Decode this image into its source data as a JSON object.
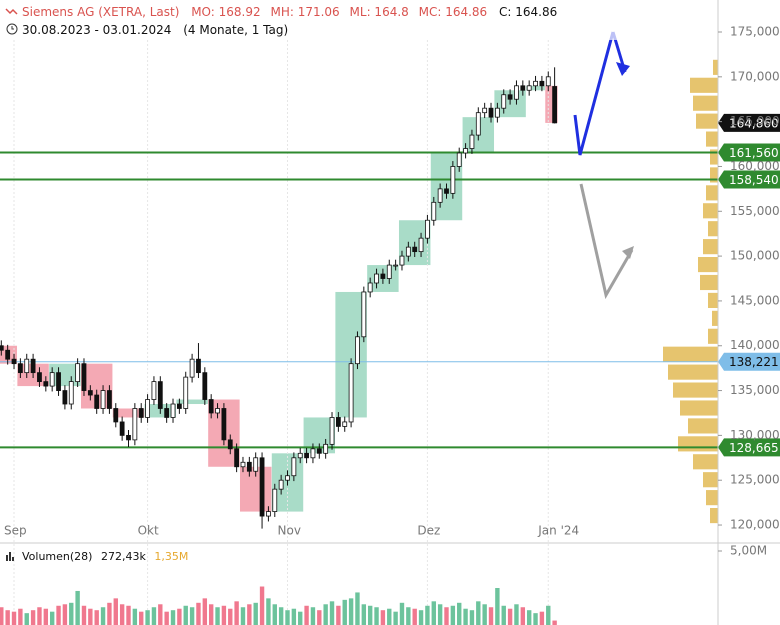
{
  "chart_data": {
    "type": "candlestick",
    "title": "Siemens AG (XETRA, Last)",
    "header_stats": [
      "MO: 168.92",
      "MH: 171.06",
      "ML: 164.8",
      "MC: 164.86"
    ],
    "close_stat": "C: 164.86",
    "date_range": "30.08.2023 - 03.01.2024",
    "period": "(4 Monate, 1 Tag)",
    "categories": [
      null,
      null,
      "Sep",
      null,
      null,
      null,
      null,
      null,
      null,
      null,
      null,
      null,
      null,
      null,
      null,
      null,
      null,
      null,
      null,
      null,
      null,
      null,
      null,
      "Okt",
      null,
      null,
      null,
      null,
      null,
      null,
      null,
      null,
      null,
      null,
      null,
      null,
      null,
      null,
      null,
      null,
      null,
      null,
      null,
      null,
      null,
      "Nov",
      null,
      null,
      null,
      null,
      null,
      null,
      null,
      null,
      null,
      null,
      null,
      null,
      null,
      null,
      null,
      null,
      null,
      null,
      null,
      null,
      null,
      "Dez",
      null,
      null,
      null,
      null,
      null,
      null,
      null,
      null,
      null,
      null,
      null,
      null,
      null,
      null,
      null,
      null,
      null,
      null,
      "Jan '24",
      null
    ],
    "open": [
      140,
      139.5,
      138.5,
      138,
      137,
      138.5,
      137,
      136,
      135.5,
      137,
      135,
      133.5,
      136,
      138,
      135,
      134.5,
      133,
      135,
      133,
      131.5,
      130,
      129.5,
      133,
      132,
      134,
      136,
      133,
      132,
      133.5,
      133,
      136.5,
      138.5,
      137,
      134,
      132.5,
      133,
      129.5,
      128.5,
      126.5,
      127,
      126,
      127.5,
      121,
      121.5,
      124,
      125,
      125.5,
      127.5,
      128,
      127.5,
      128.5,
      128,
      129,
      132,
      131,
      131.5,
      138,
      141,
      146,
      147,
      148,
      147.5,
      149,
      149,
      150,
      151,
      150.5,
      152,
      154,
      156,
      157.5,
      157,
      160,
      161.5,
      162,
      163.5,
      166,
      166.5,
      165.5,
      166.5,
      168,
      167.5,
      169,
      168.5,
      169,
      169.5,
      169,
      168.92
    ],
    "high": [
      140.6,
      140.1,
      139.1,
      138.6,
      139.1,
      139.1,
      137.6,
      136.6,
      137.6,
      137.6,
      135.6,
      136.6,
      138.6,
      138.6,
      135.6,
      135.1,
      135.6,
      135.6,
      133.6,
      132.1,
      130.6,
      133.6,
      133.6,
      134.6,
      136.6,
      136.6,
      133.6,
      134.1,
      134.1,
      137.1,
      139.1,
      140.3,
      137.6,
      134.6,
      133.6,
      133.6,
      130.1,
      129.1,
      127.6,
      127.6,
      128.1,
      128.1,
      122.1,
      124.6,
      125.6,
      126.1,
      128.1,
      128.6,
      128.6,
      129.1,
      129.1,
      129.6,
      132.6,
      132.6,
      132.1,
      138.6,
      141.6,
      146.6,
      147.6,
      148.6,
      148.6,
      149.6,
      149.6,
      150.6,
      151.6,
      151.6,
      152.6,
      154.6,
      156.6,
      158.1,
      158.1,
      160.6,
      162.1,
      162.6,
      164.1,
      166.6,
      167.1,
      167.1,
      167.1,
      168.6,
      168.6,
      169.6,
      169.6,
      169.6,
      170.1,
      170.1,
      170.6,
      171.06
    ],
    "low": [
      138.9,
      137.9,
      137.4,
      136.4,
      136.4,
      136.4,
      135.4,
      134.9,
      134.9,
      134.4,
      132.9,
      132.9,
      135.4,
      134.4,
      133.9,
      132.4,
      132.4,
      132.4,
      130.9,
      129.4,
      128.7,
      128.9,
      131.4,
      131.4,
      133.4,
      132.4,
      131.4,
      131.4,
      132.4,
      132.4,
      135.9,
      136.4,
      133.4,
      131.9,
      131.9,
      128.9,
      127.9,
      125.9,
      125.9,
      125.4,
      125.4,
      119.6,
      120.4,
      120.9,
      123.4,
      124.4,
      124.9,
      126.9,
      126.9,
      126.9,
      127.4,
      127.4,
      128.4,
      130.4,
      130.4,
      130.9,
      137.4,
      140.4,
      145.4,
      146.4,
      146.9,
      146.9,
      148.4,
      148.4,
      149.4,
      149.9,
      149.9,
      151.4,
      153.4,
      155.4,
      156.4,
      156.4,
      159.4,
      160.9,
      161.4,
      162.9,
      165.4,
      164.9,
      164.9,
      165.9,
      166.9,
      166.9,
      167.9,
      167.9,
      168.4,
      168.4,
      168.4,
      164.8
    ],
    "close": [
      139.5,
      138.5,
      138,
      137,
      138.5,
      137,
      136,
      135.5,
      137,
      135,
      133.5,
      136,
      138,
      135,
      134.5,
      133,
      135,
      133,
      131.5,
      130,
      129.5,
      133,
      132,
      134,
      136,
      133,
      132,
      133.5,
      133,
      136.5,
      138.5,
      137,
      134,
      132.5,
      133,
      129.5,
      128.5,
      126.5,
      127,
      126,
      127.5,
      121,
      121.5,
      124,
      125,
      125.5,
      127.5,
      128,
      127.5,
      128.5,
      128,
      129,
      132,
      131,
      131.5,
      138,
      141,
      146,
      147,
      148,
      147.5,
      149,
      149,
      150,
      151,
      150.5,
      152,
      154,
      156,
      157.5,
      157,
      160,
      161.5,
      162,
      163.5,
      166,
      166.5,
      165.5,
      166.5,
      168,
      167.5,
      169,
      168.5,
      169,
      169.5,
      169,
      170,
      164.86
    ],
    "up_color": "#ffffff",
    "down_color": "#111111",
    "week_up_color": "#a9dcc8",
    "week_down_color": "#f4a9b4",
    "ylim": [
      118.33,
      178.57
    ],
    "yticks": [
      {
        "value": 120,
        "label": "120,000"
      },
      {
        "value": 125,
        "label": "125,000"
      },
      {
        "value": 130,
        "label": "130,000"
      },
      {
        "value": 135,
        "label": "135,000"
      },
      {
        "value": 140,
        "label": "140,000"
      },
      {
        "value": 145,
        "label": "145,000"
      },
      {
        "value": 150,
        "label": "150,000"
      },
      {
        "value": 155,
        "label": "155,000"
      },
      {
        "value": 160,
        "label": "160,000"
      },
      {
        "value": 165,
        "label": "165,000"
      },
      {
        "value": 170,
        "label": "170,000"
      },
      {
        "value": 175,
        "label": "175,000"
      }
    ],
    "levels": [
      {
        "value": 164.86,
        "label": "164,860",
        "color": "#111111",
        "text_color": "#ffffff",
        "line": false
      },
      {
        "value": 161.56,
        "label": "161,560",
        "color": "#2f8a2f",
        "text_color": "#ffffff",
        "line": true
      },
      {
        "value": 158.54,
        "label": "158,540",
        "color": "#2f8a2f",
        "text_color": "#ffffff",
        "line": true
      },
      {
        "value": 138.221,
        "label": "138,221",
        "color": "#7fbde8",
        "text_color": "#111111",
        "line": true
      },
      {
        "value": 128.665,
        "label": "128,665",
        "color": "#2f8a2f",
        "text_color": "#ffffff",
        "line": true
      }
    ],
    "volume_profile": {
      "color": "#e6c46e",
      "prices": [
        121,
        123,
        125,
        127,
        129,
        131,
        133,
        135,
        137,
        139,
        141,
        143,
        145,
        147,
        149,
        151,
        153,
        155,
        157,
        159,
        161,
        163,
        165,
        167,
        169,
        171
      ],
      "values": [
        8,
        12,
        15,
        25,
        40,
        30,
        38,
        45,
        50,
        55,
        10,
        6,
        10,
        18,
        20,
        15,
        10,
        15,
        12,
        8,
        8,
        12,
        22,
        25,
        28,
        5
      ]
    },
    "volume": {
      "title": "Volumen(28)",
      "avg_label": "272,43k",
      "max_label": "1,35M",
      "up_color": "#6cc39c",
      "down_color": "#f0788e",
      "values": [
        1.2,
        1.0,
        0.9,
        1.1,
        0.8,
        1.0,
        1.2,
        1.1,
        0.9,
        1.3,
        1.4,
        1.5,
        2.3,
        1.3,
        1.1,
        1.0,
        1.2,
        1.5,
        1.8,
        1.4,
        1.3,
        1.1,
        0.9,
        1.0,
        1.2,
        1.4,
        0.9,
        1.0,
        1.1,
        1.3,
        1.2,
        1.5,
        1.8,
        1.4,
        1.2,
        1.3,
        1.1,
        1.6,
        1.2,
        1.4,
        1.5,
        2.6,
        1.8,
        1.4,
        1.2,
        1.0,
        1.1,
        0.9,
        1.3,
        1.2,
        1.0,
        1.4,
        1.6,
        1.3,
        1.7,
        1.8,
        2.2,
        1.4,
        1.3,
        1.2,
        1.0,
        1.1,
        0.9,
        1.5,
        1.2,
        1.1,
        1.0,
        1.3,
        1.6,
        1.4,
        1.2,
        1.3,
        1.5,
        1.1,
        1.0,
        1.6,
        1.4,
        1.2,
        2.5,
        1.3,
        1.1,
        1.4,
        1.2,
        1.0,
        0.8,
        0.9,
        1.3,
        0.3
      ],
      "ylim": [
        0,
        5
      ],
      "yticks": [
        {
          "value": 5,
          "label": "5,00M"
        }
      ]
    }
  }
}
